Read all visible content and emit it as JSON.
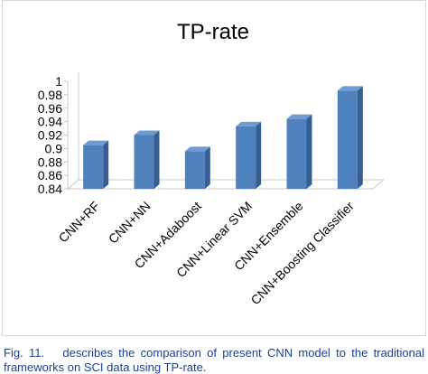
{
  "chart_data": {
    "type": "bar",
    "title": "TP-rate",
    "categories": [
      "CNN+RF",
      "CNN+NN",
      "CNN+Adaboost",
      "CNN+Linear SVM",
      "CNN+Ensemble",
      "CNN+Boosting Classifier"
    ],
    "values": [
      0.905,
      0.92,
      0.896,
      0.933,
      0.944,
      0.986
    ],
    "ylim": [
      0.84,
      1.0
    ],
    "yticks": [
      "0.84",
      "0.86",
      "0.88",
      "0.9",
      "0.92",
      "0.94",
      "0.96",
      "0.98",
      "1"
    ],
    "grid": false,
    "legend": "none",
    "bar_color": "#4f81bd",
    "bar_top_color": "#6f9bd0",
    "bar_side_color": "#365f91"
  },
  "caption": {
    "fig_label": "Fig. 11.",
    "text": "describes the comparison of present CNN model to the traditional frameworks on SCI data using TP-rate."
  }
}
